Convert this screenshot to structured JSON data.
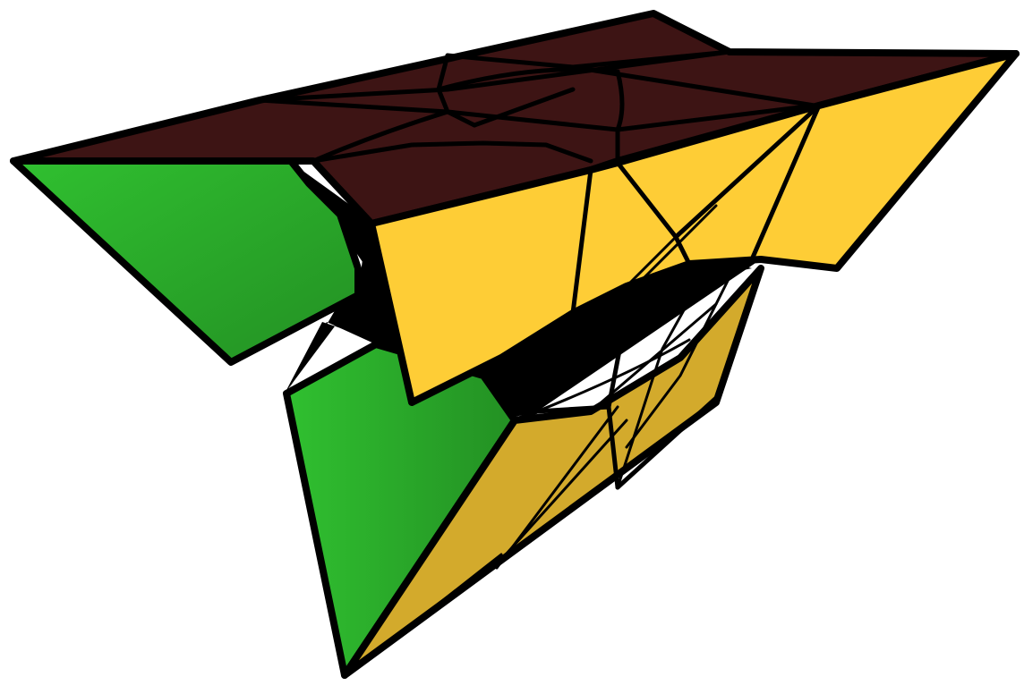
{
  "scene": {
    "subject": "twisty-puzzle-3d-render",
    "colors": {
      "background": "#ffffff",
      "top_face": "#3d1414",
      "yellow_face": "#fecd36",
      "yellow_face_shaded": "#d3aa2c",
      "green_face": "#30c030",
      "green_face_shaded": "#239023",
      "interior": "#000000",
      "edge": "#000000"
    }
  }
}
